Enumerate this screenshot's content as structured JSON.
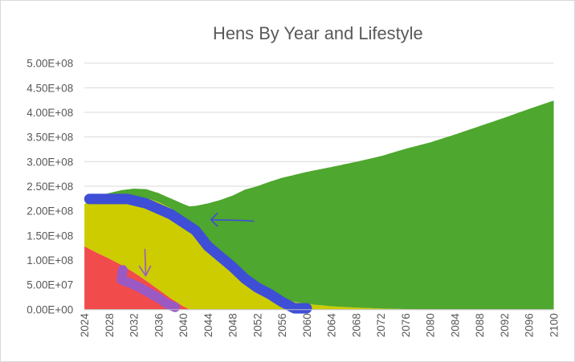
{
  "chart_data": {
    "type": "area",
    "stacked": true,
    "title": "Hens By Year and Lifestyle",
    "xlabel": "",
    "ylabel": "",
    "x_range": [
      2024,
      2100
    ],
    "ylim": [
      0,
      500000000
    ],
    "y_ticks": [
      "0.00E+00",
      "5.00E+07",
      "1.00E+08",
      "1.50E+08",
      "2.00E+08",
      "2.50E+08",
      "3.00E+08",
      "3.50E+08",
      "4.00E+08",
      "4.50E+08",
      "5.00E+08"
    ],
    "x_ticks": [
      "2024",
      "2028",
      "2032",
      "2036",
      "2040",
      "2044",
      "2048",
      "2052",
      "2056",
      "2060",
      "2064",
      "2068",
      "2072",
      "2076",
      "2080",
      "2084",
      "2088",
      "2092",
      "2096",
      "2100"
    ],
    "grid": true,
    "legend": "none",
    "series": [
      {
        "name": "red series",
        "color": "#f24b4b",
        "points": [
          [
            2024,
            128000000
          ],
          [
            2026,
            115000000
          ],
          [
            2028,
            103000000
          ],
          [
            2030,
            90000000
          ],
          [
            2032,
            75000000
          ],
          [
            2034,
            58000000
          ],
          [
            2036,
            40000000
          ],
          [
            2038,
            22000000
          ],
          [
            2040,
            6000000
          ],
          [
            2041,
            0
          ],
          [
            2100,
            0
          ]
        ]
      },
      {
        "name": "yellow series",
        "color": "#cccc00",
        "points": [
          [
            2024,
            86000000
          ],
          [
            2026,
            105000000
          ],
          [
            2028,
            119000000
          ],
          [
            2030,
            135000000
          ],
          [
            2032,
            152000000
          ],
          [
            2034,
            168000000
          ],
          [
            2036,
            178000000
          ],
          [
            2038,
            183000000
          ],
          [
            2040,
            181000000
          ],
          [
            2042,
            165000000
          ],
          [
            2044,
            140000000
          ],
          [
            2046,
            112000000
          ],
          [
            2048,
            86000000
          ],
          [
            2050,
            63000000
          ],
          [
            2052,
            45000000
          ],
          [
            2054,
            31000000
          ],
          [
            2056,
            22000000
          ],
          [
            2058,
            15000000
          ],
          [
            2060,
            11000000
          ],
          [
            2064,
            6000000
          ],
          [
            2068,
            3500000
          ],
          [
            2072,
            1500000
          ],
          [
            2076,
            500000
          ],
          [
            2080,
            0
          ],
          [
            2100,
            0
          ]
        ]
      },
      {
        "name": "green series",
        "color": "#4ea72e",
        "points": [
          [
            2024,
            0
          ],
          [
            2026,
            8000000
          ],
          [
            2028,
            14000000
          ],
          [
            2030,
            17000000
          ],
          [
            2032,
            18000000
          ],
          [
            2034,
            18000000
          ],
          [
            2036,
            18000000
          ],
          [
            2038,
            20000000
          ],
          [
            2040,
            27000000
          ],
          [
            2042,
            45000000
          ],
          [
            2044,
            75000000
          ],
          [
            2046,
            110000000
          ],
          [
            2048,
            145000000
          ],
          [
            2050,
            180000000
          ],
          [
            2052,
            205000000
          ],
          [
            2054,
            228000000
          ],
          [
            2056,
            245000000
          ],
          [
            2058,
            258000000
          ],
          [
            2060,
            268000000
          ],
          [
            2064,
            283000000
          ],
          [
            2068,
            296000000
          ],
          [
            2072,
            309500000
          ],
          [
            2076,
            325500000
          ],
          [
            2080,
            339000000
          ],
          [
            2084,
            355000000
          ],
          [
            2088,
            372000000
          ],
          [
            2092,
            389000000
          ],
          [
            2096,
            407000000
          ],
          [
            2100,
            424000000
          ]
        ]
      }
    ],
    "annotations": [
      {
        "name": "blue-curve",
        "color": "#3e4ed6",
        "points": [
          [
            2024.8,
            224000000
          ],
          [
            2031,
            224000000
          ],
          [
            2034,
            215000000
          ],
          [
            2038,
            193000000
          ],
          [
            2042,
            160000000
          ],
          [
            2044,
            128000000
          ],
          [
            2046,
            107000000
          ],
          [
            2048,
            86000000
          ],
          [
            2050,
            62000000
          ],
          [
            2052,
            44000000
          ],
          [
            2054,
            31000000
          ],
          [
            2056,
            15000000
          ],
          [
            2058,
            2000000
          ],
          [
            2060,
            2000000
          ]
        ]
      },
      {
        "name": "purple-curve",
        "color": "#9b59c4",
        "points": [
          [
            2030.2,
            80000000
          ],
          [
            2030.0,
            60000000
          ],
          [
            2031.0,
            55000000
          ],
          [
            2032.5,
            47000000
          ],
          [
            2034.0,
            37000000
          ],
          [
            2036.0,
            23000000
          ],
          [
            2037.5,
            10000000
          ],
          [
            2038.7,
            4000000
          ]
        ]
      },
      {
        "name": "blue-arrow",
        "color": "#3e4ed6",
        "direction": "left",
        "at": [
          2044.5,
          182000000
        ]
      },
      {
        "name": "purple-arrow",
        "color": "#9b59c4",
        "direction": "down",
        "at": [
          2033.8,
          68000000
        ]
      }
    ]
  }
}
